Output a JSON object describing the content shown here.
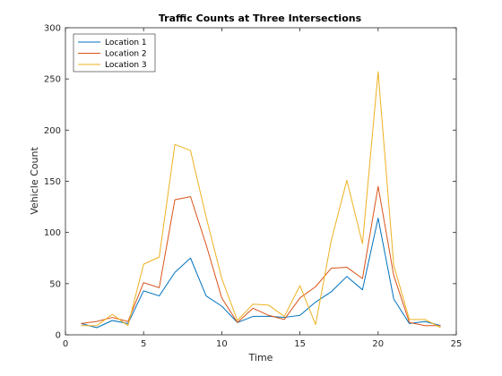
{
  "chart_data": {
    "type": "line",
    "title": "Traffic Counts at Three Intersections",
    "xlabel": "Time",
    "ylabel": "Vehicle Count",
    "xlim": [
      0,
      25
    ],
    "ylim": [
      0,
      300
    ],
    "xticks": [
      0,
      5,
      10,
      15,
      20,
      25
    ],
    "yticks": [
      0,
      50,
      100,
      150,
      200,
      250,
      300
    ],
    "grid": false,
    "legend_position": "top-left",
    "x": [
      1,
      2,
      3,
      4,
      5,
      6,
      7,
      8,
      9,
      10,
      11,
      12,
      13,
      14,
      15,
      16,
      17,
      18,
      19,
      20,
      21,
      22,
      23,
      24
    ],
    "series": [
      {
        "name": "Location 1",
        "color": "#0072BD",
        "values": [
          11,
          7,
          14,
          11,
          43,
          38,
          61,
          75,
          38,
          28,
          12,
          18,
          18,
          17,
          19,
          32,
          42,
          57,
          44,
          114,
          35,
          11,
          13,
          9
        ]
      },
      {
        "name": "Location 2",
        "color": "#D95319",
        "values": [
          11,
          13,
          17,
          13,
          51,
          46,
          132,
          135,
          88,
          36,
          12,
          26,
          19,
          15,
          36,
          47,
          65,
          66,
          55,
          145,
          58,
          12,
          9,
          9
        ]
      },
      {
        "name": "Location 3",
        "color": "#EDB120",
        "values": [
          9,
          9,
          20,
          9,
          69,
          76,
          186,
          180,
          115,
          55,
          14,
          30,
          29,
          18,
          48,
          10,
          92,
          151,
          89,
          257,
          68,
          15,
          15,
          7
        ]
      }
    ]
  }
}
